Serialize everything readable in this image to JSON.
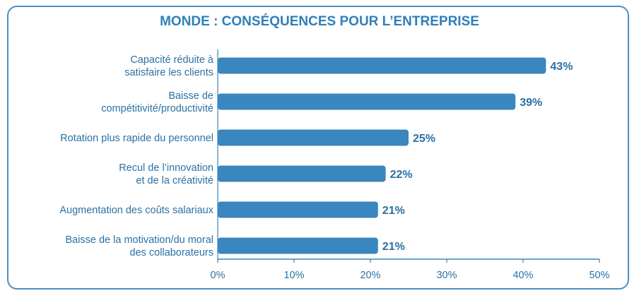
{
  "chart_data": {
    "type": "bar",
    "orientation": "horizontal",
    "title": "MONDE : CONSÉQUENCES POUR L’ENTREPRISE",
    "categories": [
      [
        "Capacité réduite à",
        "satisfaire les clients"
      ],
      [
        "Baisse de",
        "compétitivité/productivité"
      ],
      [
        "Rotation plus rapide du personnel"
      ],
      [
        "Recul de l’innovation",
        "et de la créativité"
      ],
      [
        "Augmentation des coûts salariaux"
      ],
      [
        "Baisse de la motivation/du moral",
        "des collaborateurs"
      ]
    ],
    "values": [
      43,
      39,
      25,
      22,
      21,
      21
    ],
    "value_labels": [
      "43%",
      "39%",
      "25%",
      "22%",
      "21%",
      "21%"
    ],
    "xlim": [
      0,
      50
    ],
    "xticks": [
      0,
      10,
      20,
      30,
      40,
      50
    ],
    "xtick_labels": [
      "0%",
      "10%",
      "20%",
      "30%",
      "40%",
      "50%"
    ],
    "grid": false,
    "colors": {
      "bar": "#3a86bf",
      "text": "#2a71a5",
      "title": "#2f7fb8",
      "frame": "#4f8fbe",
      "axis": "#3a86bf"
    }
  }
}
